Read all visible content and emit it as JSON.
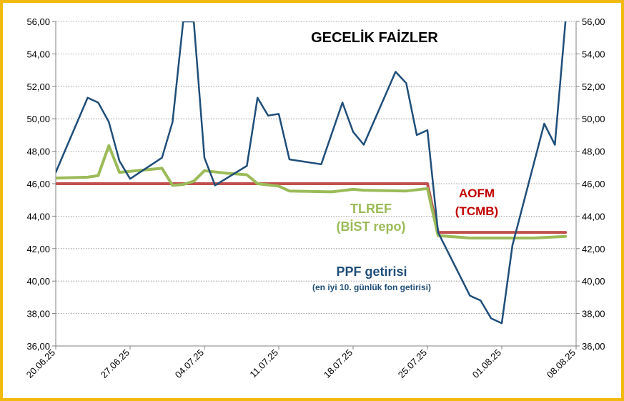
{
  "chart_data": {
    "type": "line",
    "title": "GECELİK FAİZLER",
    "xlabel": "",
    "ylabel": "",
    "ylim": [
      36,
      56
    ],
    "y_ticks": [
      "56,00",
      "54,00",
      "52,00",
      "50,00",
      "48,00",
      "46,00",
      "44,00",
      "42,00",
      "40,00",
      "38,00",
      "36,00"
    ],
    "x_ticks": [
      "20.06.25",
      "27.06.25",
      "04.07.25",
      "11.07.25",
      "18.07.25",
      "25.07.25",
      "01.08.25",
      "08.08.25"
    ],
    "grid": true,
    "series": [
      {
        "name": "PPF getirisi",
        "color": "#1f4e79",
        "points": [
          [
            "20.06.25",
            46.7
          ],
          [
            "23.06.25",
            51.3
          ],
          [
            "24.06.25",
            51.0
          ],
          [
            "25.06.25",
            49.8
          ],
          [
            "26.06.25",
            47.4
          ],
          [
            "27.06.25",
            46.3
          ],
          [
            "30.06.25",
            47.6
          ],
          [
            "01.07.25",
            49.8
          ],
          [
            "02.07.25",
            56.0
          ],
          [
            "03.07.25",
            56.0
          ],
          [
            "04.07.25",
            47.6
          ],
          [
            "05.07.25",
            45.9
          ],
          [
            "08.07.25",
            47.1
          ],
          [
            "09.07.25",
            51.3
          ],
          [
            "10.07.25",
            50.2
          ],
          [
            "11.07.25",
            50.3
          ],
          [
            "12.07.25",
            47.5
          ],
          [
            "15.07.25",
            47.2
          ],
          [
            "17.07.25",
            51.0
          ],
          [
            "18.07.25",
            49.2
          ],
          [
            "19.07.25",
            48.4
          ],
          [
            "22.07.25",
            52.9
          ],
          [
            "23.07.25",
            52.2
          ],
          [
            "24.07.25",
            49.0
          ],
          [
            "25.07.25",
            49.3
          ],
          [
            "26.07.25",
            43.0
          ],
          [
            "29.07.25",
            39.1
          ],
          [
            "30.07.25",
            38.8
          ],
          [
            "31.07.25",
            37.7
          ],
          [
            "01.08.25",
            37.4
          ],
          [
            "02.08.25",
            42.2
          ],
          [
            "05.08.25",
            49.7
          ],
          [
            "06.08.25",
            48.4
          ],
          [
            "07.08.25",
            56.0
          ]
        ]
      },
      {
        "name": "TLREF (BİST repo)",
        "label_lines": [
          "TLREF",
          "(BİST repo)"
        ],
        "color": "#9bbb59",
        "points": [
          [
            "20.06.25",
            46.35
          ],
          [
            "23.06.25",
            46.4
          ],
          [
            "24.06.25",
            46.5
          ],
          [
            "25.06.25",
            48.35
          ],
          [
            "26.06.25",
            46.7
          ],
          [
            "30.06.25",
            46.95
          ],
          [
            "01.07.25",
            45.9
          ],
          [
            "02.07.25",
            45.95
          ],
          [
            "03.07.25",
            46.15
          ],
          [
            "04.07.25",
            46.8
          ],
          [
            "06.07.25",
            46.65
          ],
          [
            "08.07.25",
            46.55
          ],
          [
            "09.07.25",
            46.0
          ],
          [
            "11.07.25",
            45.85
          ],
          [
            "12.07.25",
            45.55
          ],
          [
            "16.07.25",
            45.5
          ],
          [
            "18.07.25",
            45.65
          ],
          [
            "19.07.25",
            45.6
          ],
          [
            "23.07.25",
            45.55
          ],
          [
            "25.07.25",
            45.7
          ],
          [
            "26.07.25",
            42.8
          ],
          [
            "29.07.25",
            42.65
          ],
          [
            "04.08.25",
            42.65
          ],
          [
            "07.08.25",
            42.75
          ]
        ]
      },
      {
        "name": "AOFM (TCMB)",
        "label_lines": [
          "AOFM",
          "(TCMB)"
        ],
        "color": "#c0504d",
        "points": [
          [
            "20.06.25",
            46.0
          ],
          [
            "25.07.25",
            46.0
          ],
          [
            "26.07.25",
            43.0
          ],
          [
            "07.08.25",
            43.0
          ]
        ]
      }
    ],
    "annotations": {
      "ppf_sub": "(en iyi 10. günlük fon getirisi)"
    }
  }
}
